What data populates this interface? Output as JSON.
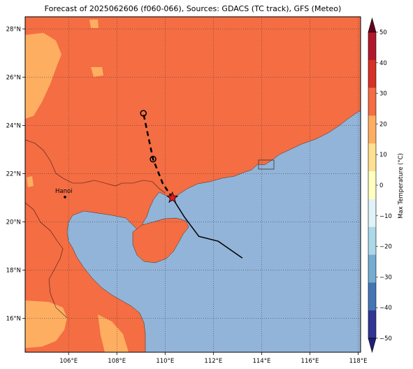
{
  "title": "Forecast of 2025062606 (f060-066), Sources: GDACS (TC track), GFS (Meteo)",
  "colors": {
    "sea": "#92b4d8",
    "land_warm": "#f46d43",
    "land_mild": "#fdae61",
    "track_forecast": "#000000",
    "marker_star": "#e31a1c"
  },
  "map": {
    "lon_range": [
      104.2,
      118.1
    ],
    "lat_range": [
      14.6,
      28.5
    ],
    "lon_ticks": [
      "106°E",
      "108°E",
      "110°E",
      "112°E",
      "114°E",
      "116°E",
      "118°E"
    ],
    "lat_ticks": [
      "16°N",
      "18°N",
      "20°N",
      "22°N",
      "24°N",
      "26°N",
      "28°N"
    ],
    "grid": true,
    "city": {
      "name": "Hanoi",
      "lon": 105.85,
      "lat": 21.03
    }
  },
  "track": {
    "past_points": [
      [
        113.2,
        18.5
      ],
      [
        112.2,
        19.2
      ],
      [
        111.4,
        19.4
      ],
      [
        110.8,
        20.2
      ],
      [
        110.3,
        21.0
      ]
    ],
    "current_position": [
      110.3,
      21.0
    ],
    "forecast_points": [
      [
        110.3,
        21.0
      ],
      [
        109.9,
        21.6
      ],
      [
        109.5,
        22.6
      ],
      [
        109.1,
        24.5
      ]
    ],
    "forecast_markers": [
      [
        109.5,
        22.6
      ],
      [
        109.1,
        24.5
      ]
    ]
  },
  "colorbar": {
    "label": "Max Temperature (°C)",
    "ticks": [
      "50",
      "40",
      "30",
      "20",
      "10",
      "0",
      "−10",
      "−20",
      "−30",
      "−40",
      "−50"
    ],
    "colors": [
      "#67001f",
      "#b2182b",
      "#d73027",
      "#f46d43",
      "#fdae61",
      "#fee090",
      "#ffffbf",
      "#e0f3f8",
      "#abd9e9",
      "#74add1",
      "#4575b4",
      "#313695",
      "#1f1f7a"
    ]
  }
}
